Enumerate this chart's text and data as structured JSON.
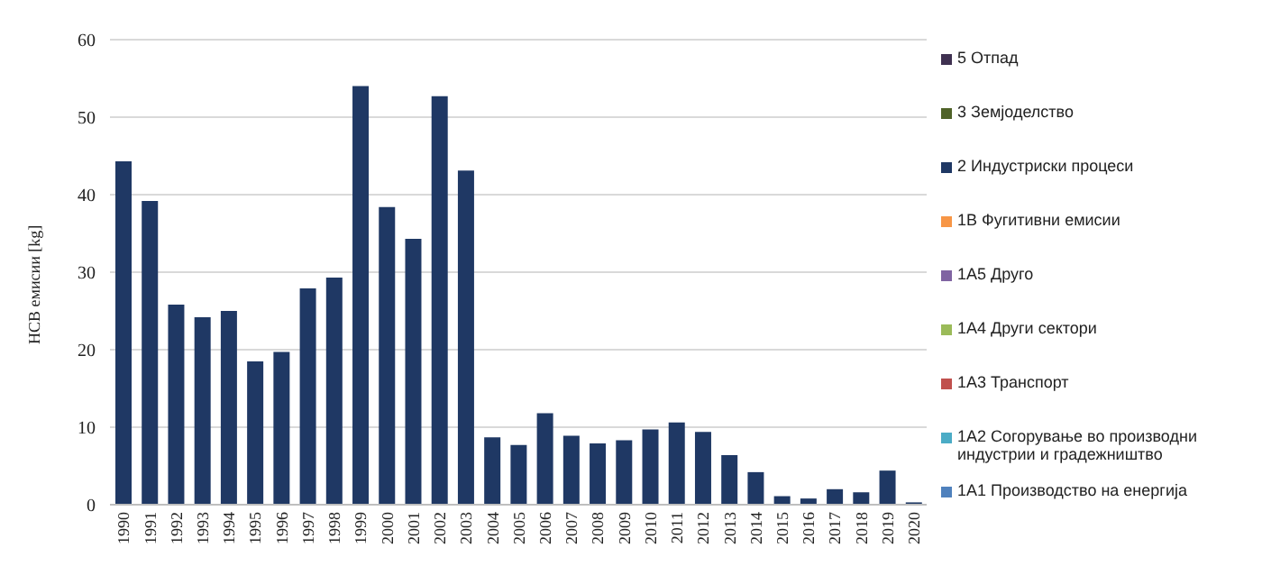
{
  "chart_data": {
    "type": "bar",
    "stacked": true,
    "ylabel": "НСВ емисии [kg]",
    "categories": [
      "1990",
      "1991",
      "1992",
      "1993",
      "1994",
      "1995",
      "1996",
      "1997",
      "1998",
      "1999",
      "2000",
      "2001",
      "2002",
      "2003",
      "2004",
      "2005",
      "2006",
      "2007",
      "2008",
      "2009",
      "2010",
      "2011",
      "2012",
      "2013",
      "2014",
      "2015",
      "2016",
      "2017",
      "2018",
      "2019",
      "2020"
    ],
    "series": [
      {
        "name": "1A1 Производство на енергија",
        "color": "#4f81bd",
        "values": [
          0,
          0,
          0,
          0,
          0,
          0,
          0,
          0,
          0,
          0,
          0,
          0,
          0,
          0,
          0,
          0,
          0,
          0,
          0,
          0,
          0,
          0,
          0,
          0,
          0,
          0,
          0,
          0,
          0,
          0,
          0
        ]
      },
      {
        "name": "1A2 Согорување во производни индустрии и градежништво",
        "color": "#4bacc6",
        "values": [
          0,
          0,
          0,
          0,
          0,
          0,
          0,
          0,
          0,
          0,
          0,
          0,
          0,
          0,
          0,
          0,
          0,
          0,
          0,
          0,
          0,
          0,
          0,
          0,
          0,
          0,
          0,
          0,
          0,
          0,
          0
        ]
      },
      {
        "name": "1A3 Транспорт",
        "color": "#c0504d",
        "values": [
          0,
          0,
          0,
          0,
          0,
          0,
          0,
          0,
          0,
          0,
          0,
          0,
          0,
          0,
          0,
          0,
          0,
          0,
          0,
          0,
          0,
          0,
          0,
          0,
          0,
          0,
          0,
          0,
          0,
          0,
          0
        ]
      },
      {
        "name": "1A4 Други сектори",
        "color": "#9bbb59",
        "values": [
          0,
          0,
          0,
          0,
          0,
          0,
          0,
          0,
          0,
          0,
          0,
          0,
          0,
          0,
          0,
          0,
          0,
          0,
          0,
          0,
          0,
          0,
          0,
          0,
          0,
          0,
          0,
          0,
          0,
          0,
          0
        ]
      },
      {
        "name": "1A5 Друго",
        "color": "#8064a2",
        "values": [
          0,
          0,
          0,
          0,
          0,
          0,
          0,
          0,
          0,
          0,
          0,
          0,
          0,
          0,
          0,
          0,
          0,
          0,
          0,
          0,
          0,
          0,
          0,
          0,
          0,
          0,
          0,
          0,
          0,
          0,
          0
        ]
      },
      {
        "name": "1B Фугитивни  емисии",
        "color": "#f79646",
        "values": [
          0,
          0,
          0,
          0,
          0,
          0,
          0,
          0,
          0,
          0,
          0,
          0,
          0,
          0,
          0,
          0,
          0,
          0,
          0,
          0,
          0,
          0,
          0,
          0,
          0,
          0,
          0,
          0,
          0,
          0,
          0
        ]
      },
      {
        "name": "2 Индустриски процеси",
        "color": "#1f3864",
        "values": [
          44.3,
          39.2,
          25.8,
          24.2,
          25,
          18.5,
          19.7,
          27.9,
          29.3,
          54,
          38.4,
          34.3,
          52.7,
          43.1,
          8.7,
          7.7,
          11.8,
          8.9,
          7.9,
          8.3,
          9.7,
          10.6,
          9.4,
          6.4,
          4.2,
          1.1,
          0.8,
          2.0,
          1.6,
          4.4,
          0.3
        ]
      },
      {
        "name": "3 Земјоделство",
        "color": "#4f6228",
        "values": [
          0,
          0,
          0,
          0,
          0,
          0,
          0,
          0,
          0,
          0,
          0,
          0,
          0,
          0,
          0,
          0,
          0,
          0,
          0,
          0,
          0,
          0,
          0,
          0,
          0,
          0,
          0,
          0,
          0,
          0,
          0
        ]
      },
      {
        "name": "5 Отпад",
        "color": "#3f3151",
        "values": [
          0,
          0,
          0,
          0,
          0,
          0,
          0,
          0,
          0,
          0,
          0,
          0,
          0,
          0,
          0,
          0,
          0,
          0,
          0,
          0,
          0,
          0,
          0,
          0,
          0,
          0,
          0,
          0,
          0,
          0,
          0
        ]
      }
    ],
    "ylim": [
      0,
      60
    ],
    "yticks": [
      0,
      10,
      20,
      30,
      40,
      50,
      60
    ],
    "grid": "y",
    "legend": "right"
  }
}
